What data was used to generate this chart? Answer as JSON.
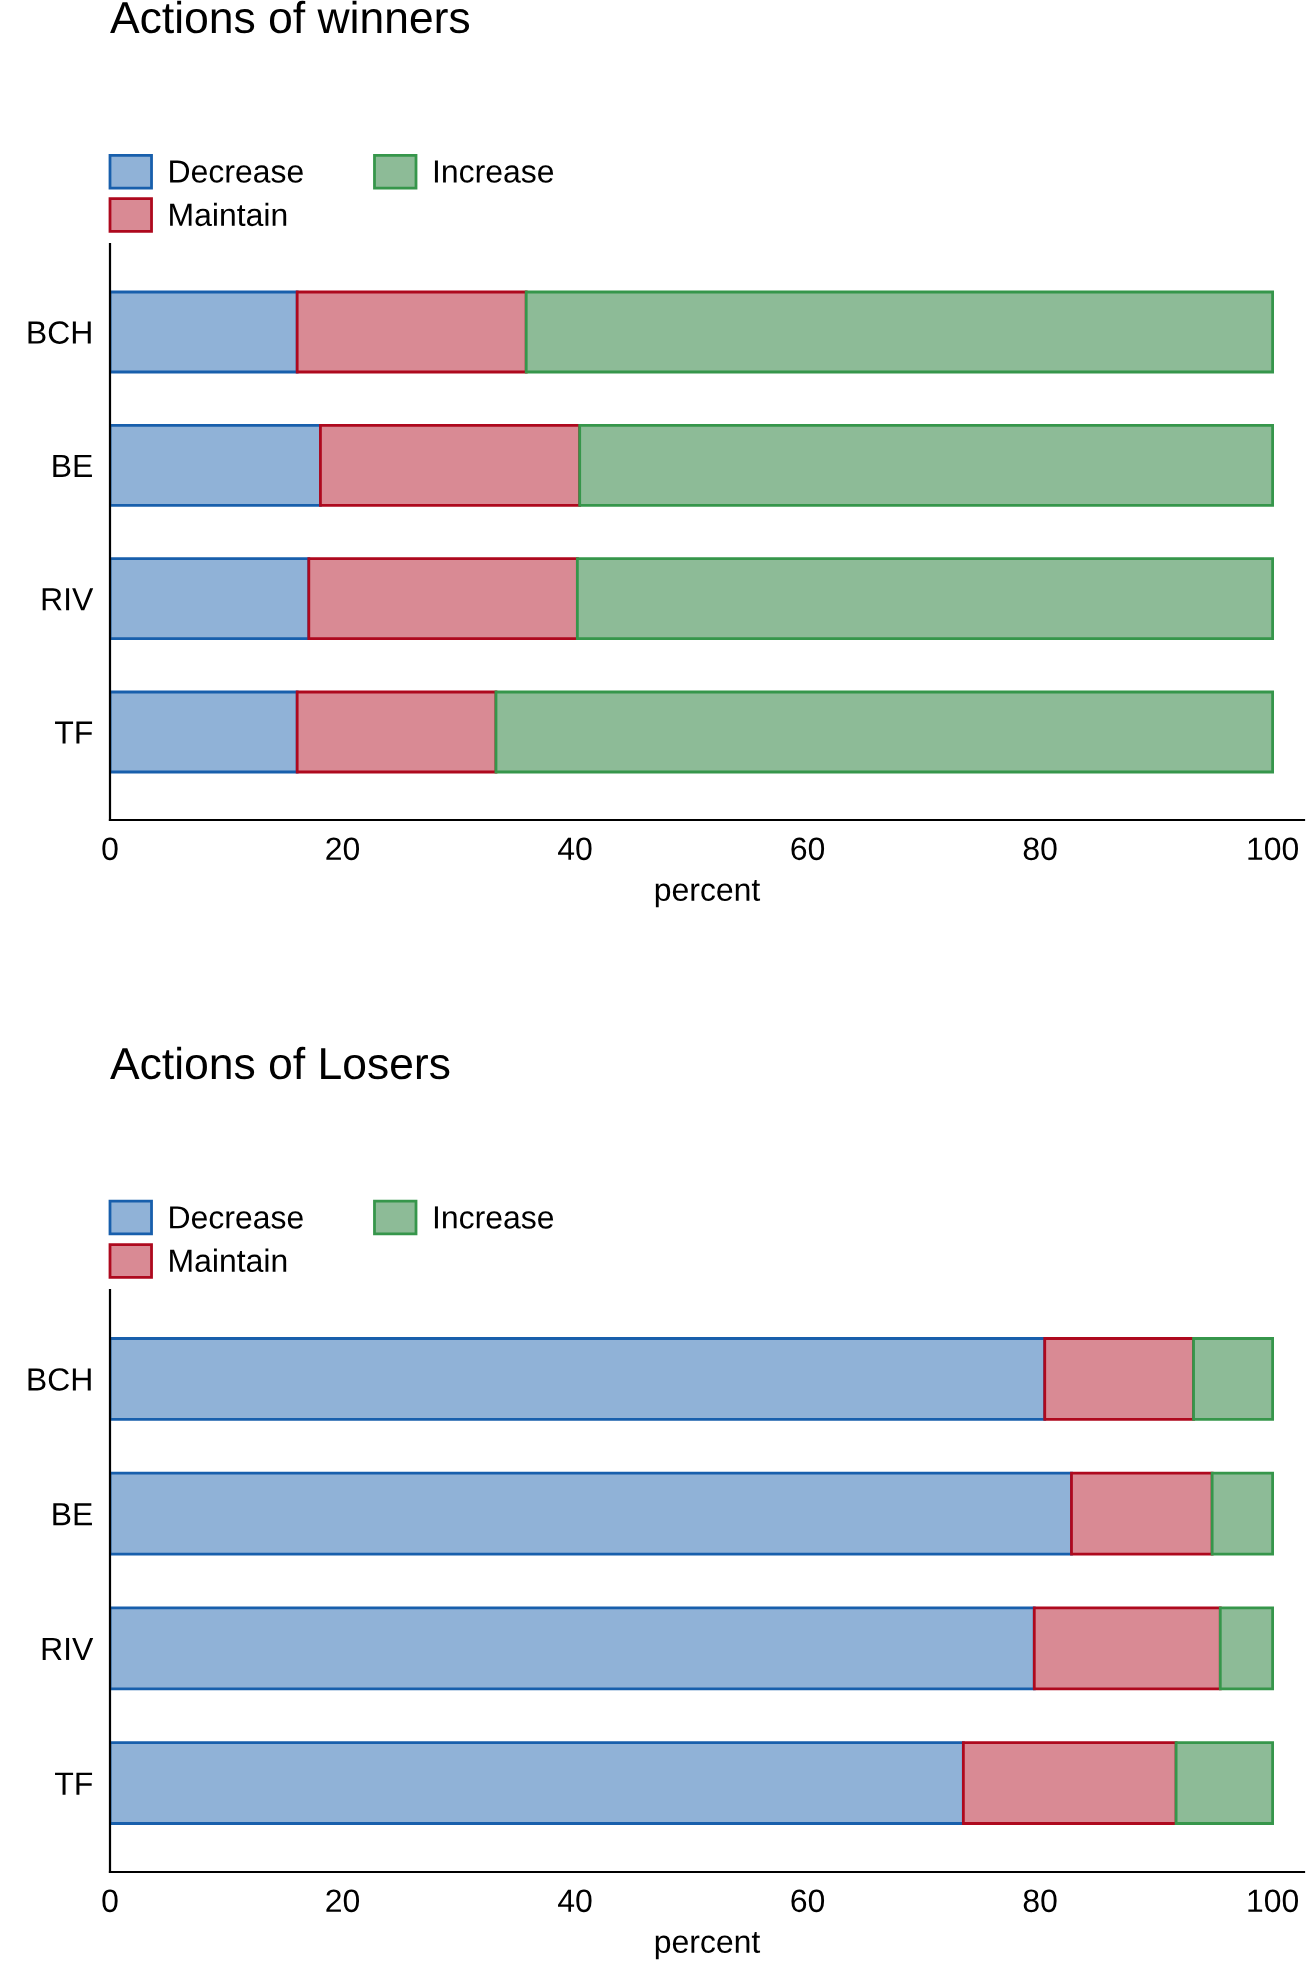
{
  "chart_data": [
    {
      "type": "bar",
      "orientation": "horizontal",
      "stacked": true,
      "title": "Actions of winners",
      "xlabel": "percent",
      "categories": [
        "BCH",
        "BE",
        "RIV",
        "TF"
      ],
      "xlim": [
        0,
        102.7
      ],
      "xticks": [
        0,
        20,
        40,
        60,
        80,
        100
      ],
      "legend": "top left",
      "grid": false,
      "series": [
        {
          "name": "Decrease",
          "color": "#90b2d7",
          "values": [
            16.1,
            18.1,
            17.1,
            16.1
          ]
        },
        {
          "name": "Maintain",
          "color": "#d98a94",
          "values": [
            19.7,
            22.3,
            23.1,
            17.1
          ]
        },
        {
          "name": "Increase",
          "color": "#8dbb97",
          "values": [
            64.2,
            59.6,
            59.8,
            66.8
          ]
        }
      ]
    },
    {
      "type": "bar",
      "orientation": "horizontal",
      "stacked": true,
      "title": "Actions of Losers",
      "xlabel": "percent",
      "categories": [
        "BCH",
        "BE",
        "RIV",
        "TF"
      ],
      "xlim": [
        0,
        102.7
      ],
      "xticks": [
        0,
        20,
        40,
        60,
        80,
        100
      ],
      "legend": "top left",
      "grid": false,
      "series": [
        {
          "name": "Decrease",
          "color": "#90b2d7",
          "values": [
            80.4,
            82.7,
            79.5,
            73.4
          ]
        },
        {
          "name": "Maintain",
          "color": "#d98a94",
          "values": [
            12.8,
            12.1,
            16.0,
            18.3
          ]
        },
        {
          "name": "Increase",
          "color": "#8dbb97",
          "values": [
            6.8,
            5.2,
            4.5,
            8.3
          ]
        }
      ]
    }
  ]
}
